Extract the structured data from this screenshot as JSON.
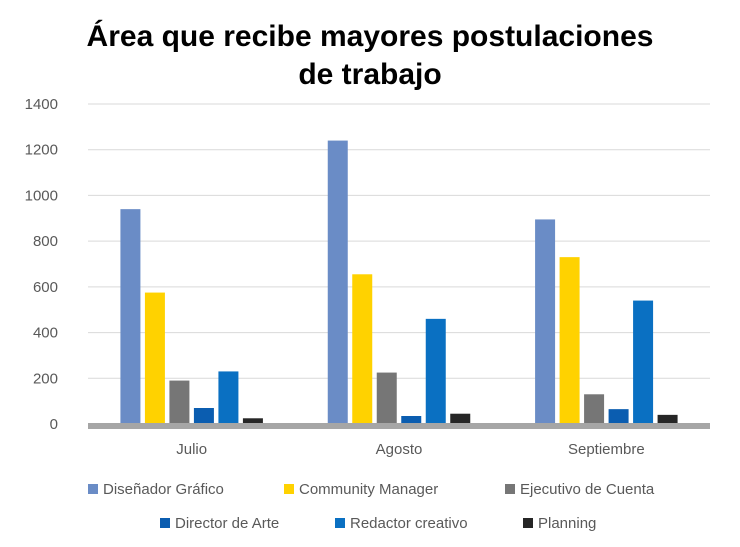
{
  "chart_data": {
    "type": "bar",
    "title_lines": [
      "Área que recibe mayores postulaciones",
      "de trabajo"
    ],
    "categories": [
      "Julio",
      "Agosto",
      "Septiembre"
    ],
    "ylim": [
      0,
      1400
    ],
    "yticks": [
      0,
      200,
      400,
      600,
      800,
      1000,
      1200,
      1400
    ],
    "grid": true,
    "legend_position": "bottom",
    "series": [
      {
        "name": "Diseñador Gráfico",
        "color": "#6A8CC6",
        "values": [
          940,
          1240,
          895
        ]
      },
      {
        "name": "Community Manager",
        "color": "#FFD200",
        "values": [
          575,
          655,
          730
        ]
      },
      {
        "name": "Ejecutivo de Cuenta",
        "color": "#767676",
        "values": [
          190,
          225,
          130
        ]
      },
      {
        "name": "Director de Arte",
        "color": "#0B5DB0",
        "values": [
          70,
          35,
          65
        ]
      },
      {
        "name": "Redactor creativo",
        "color": "#0A70C2",
        "values": [
          230,
          460,
          540
        ]
      },
      {
        "name": "Planning",
        "color": "#262626",
        "values": [
          25,
          45,
          40
        ]
      }
    ]
  }
}
